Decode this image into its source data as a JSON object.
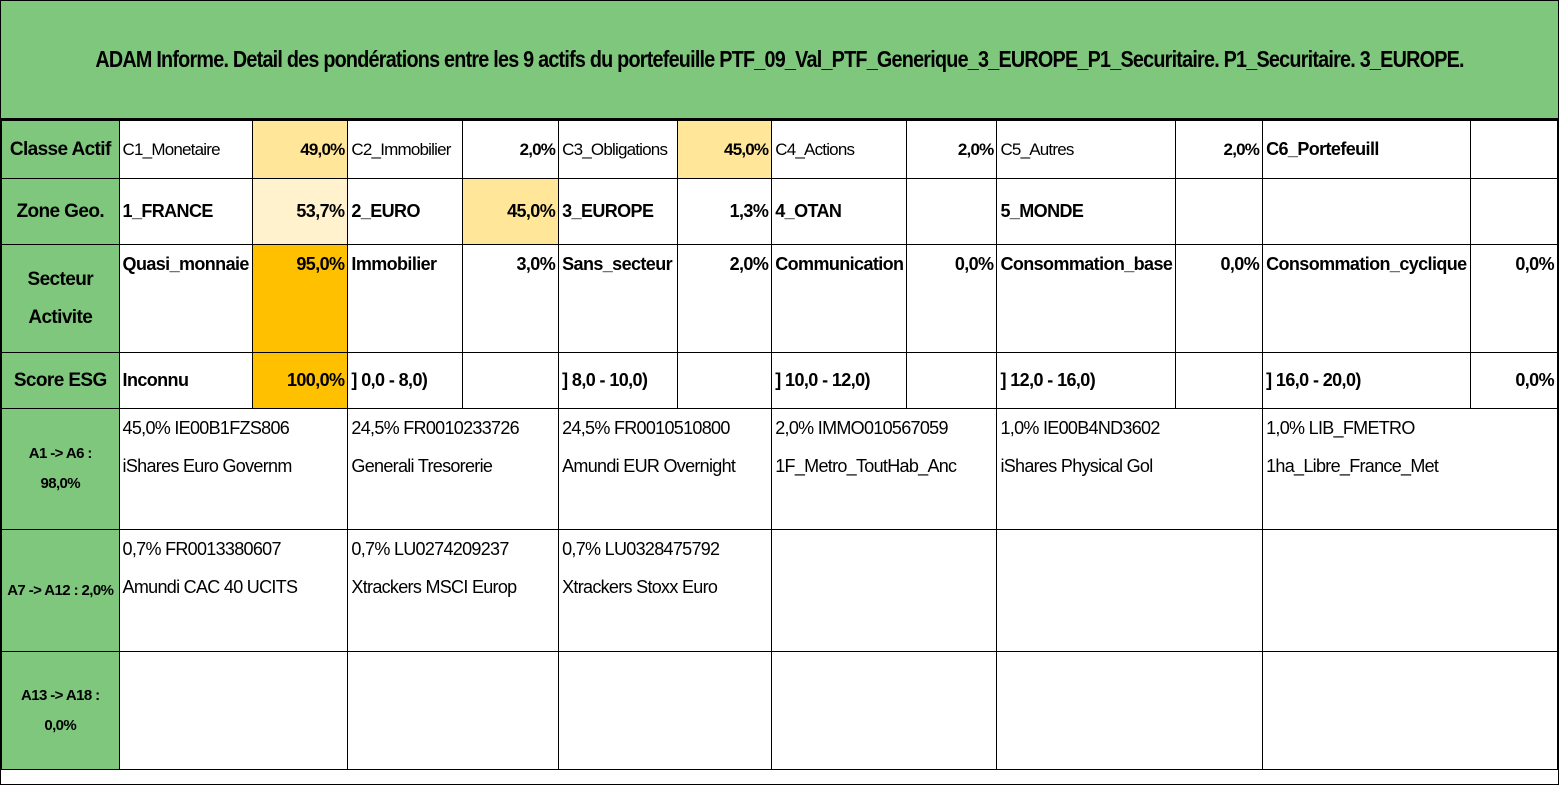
{
  "title": "ADAM Informe. Detail des pondérations entre les 9 actifs du portefeuille PTF_09_Val_PTF_Generique_3_EUROPE_P1_Securitaire. P1_Securitaire. 3_EUROPE.",
  "classe_actif": {
    "header": "Classe Actif",
    "items": [
      {
        "label": "C1_Monetaire",
        "value": "49,0%"
      },
      {
        "label": "C2_Immobilier",
        "value": "2,0%"
      },
      {
        "label": "C3_Obligations",
        "value": "45,0%"
      },
      {
        "label": "C4_Actions",
        "value": "2,0%"
      },
      {
        "label": "C5_Autres",
        "value": "2,0%"
      },
      {
        "label": "C6_Portefeuill",
        "value": ""
      }
    ]
  },
  "zone_geo": {
    "header": "Zone Geo.",
    "items": [
      {
        "label": "1_FRANCE",
        "value": "53,7%"
      },
      {
        "label": "2_EURO",
        "value": "45,0%"
      },
      {
        "label": "3_EUROPE",
        "value": "1,3%"
      },
      {
        "label": "4_OTAN",
        "value": ""
      },
      {
        "label": "5_MONDE",
        "value": ""
      },
      {
        "label": "",
        "value": ""
      }
    ]
  },
  "secteur": {
    "header_line1": "Secteur",
    "header_line2": "Activite",
    "items": [
      {
        "label": "Quasi_monnaie",
        "value": "95,0%"
      },
      {
        "label": "Immobilier",
        "value": "3,0%"
      },
      {
        "label": "Sans_secteur",
        "value": "2,0%"
      },
      {
        "label": "Communication",
        "value": "0,0%"
      },
      {
        "label": "Consommation_base",
        "value": "0,0%"
      },
      {
        "label": "Consommation_cyclique",
        "value": "0,0%"
      }
    ]
  },
  "score_esg": {
    "header": "Score ESG",
    "items": [
      {
        "label": "Inconnu",
        "value": "100,0%"
      },
      {
        "label": "] 0,0 - 8,0)",
        "value": ""
      },
      {
        "label": "] 8,0 - 10,0)",
        "value": ""
      },
      {
        "label": "] 10,0 - 12,0)",
        "value": ""
      },
      {
        "label": "] 12,0 - 16,0)",
        "value": ""
      },
      {
        "label": "] 16,0 - 20,0)",
        "value": "0,0%"
      }
    ]
  },
  "assets": [
    {
      "header_line1": "A1 -> A6 :",
      "header_line2": "98,0%",
      "items": [
        {
          "line1": "45,0% IE00B1FZS806",
          "line2": "iShares Euro Governm"
        },
        {
          "line1": "24,5% FR0010233726",
          "line2": "Generali Tresorerie"
        },
        {
          "line1": "24,5% FR0010510800",
          "line2": "Amundi EUR Overnight"
        },
        {
          "line1": "2,0% IMMO010567059",
          "line2": "1F_Metro_ToutHab_Anc"
        },
        {
          "line1": "1,0% IE00B4ND3602",
          "line2": "iShares Physical Gol"
        },
        {
          "line1": "1,0% LIB_FMETRO",
          "line2": "1ha_Libre_France_Met"
        }
      ]
    },
    {
      "header_line1": "A7 -> A12 : 2,0%",
      "header_line2": "",
      "items": [
        {
          "line1": "0,7% FR0013380607",
          "line2": "Amundi CAC 40 UCITS"
        },
        {
          "line1": "0,7% LU0274209237",
          "line2": "Xtrackers MSCI Europ"
        },
        {
          "line1": "0,7% LU0328475792",
          "line2": "Xtrackers Stoxx Euro"
        },
        {
          "line1": "",
          "line2": ""
        },
        {
          "line1": "",
          "line2": ""
        },
        {
          "line1": "",
          "line2": ""
        }
      ]
    },
    {
      "header_line1": "A13 -> A18 :",
      "header_line2": "0,0%",
      "items": [
        {
          "line1": "",
          "line2": ""
        },
        {
          "line1": "",
          "line2": ""
        },
        {
          "line1": "",
          "line2": ""
        },
        {
          "line1": "",
          "line2": ""
        },
        {
          "line1": "",
          "line2": ""
        },
        {
          "line1": "",
          "line2": ""
        }
      ]
    }
  ]
}
